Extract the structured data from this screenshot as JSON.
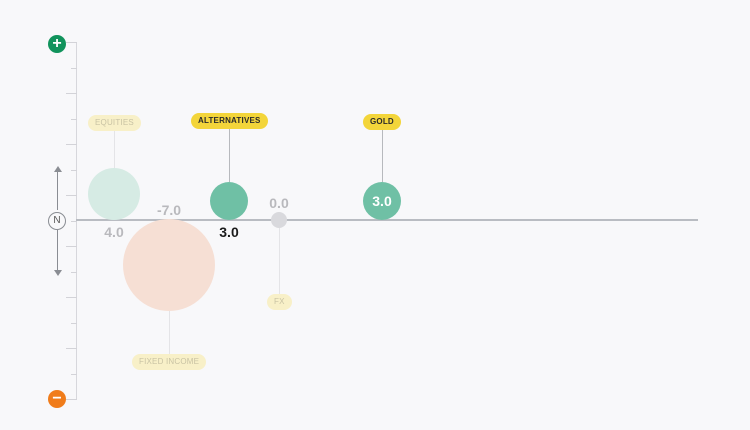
{
  "scale": {
    "increase_icon": "plus-icon",
    "decrease_icon": "minus-icon",
    "neutral_label": "N",
    "increase_color": "#11935c",
    "decrease_color": "#f07c1a"
  },
  "chart_data": {
    "type": "scatter",
    "ylim": [
      -10,
      10
    ],
    "items": [
      {
        "key": "equities",
        "label": "EQUITIES",
        "value": 4.0,
        "display": "4.0",
        "active": false,
        "color": "#d6ebe4",
        "label_side": "above",
        "value_side": "below"
      },
      {
        "key": "fixed_income",
        "label": "FIXED INCOME",
        "value": -7.0,
        "display": "-7.0",
        "active": false,
        "color": "#f6dfd4",
        "label_side": "below",
        "value_side": "above"
      },
      {
        "key": "alternatives",
        "label": "ALTERNATIVES",
        "value": 3.0,
        "display": "3.0",
        "active": true,
        "color": "#6fc0a5",
        "label_side": "above",
        "value_side": "below"
      },
      {
        "key": "fx",
        "label": "FX",
        "value": 0.0,
        "display": "0.0",
        "active": false,
        "color": "#d9d9dd",
        "label_side": "below",
        "value_side": "above"
      },
      {
        "key": "gold",
        "label": "GOLD",
        "value": 3.0,
        "display": "3.0",
        "active": true,
        "color": "#6fc0a5",
        "label_side": "above",
        "value_side": "inside"
      }
    ]
  }
}
